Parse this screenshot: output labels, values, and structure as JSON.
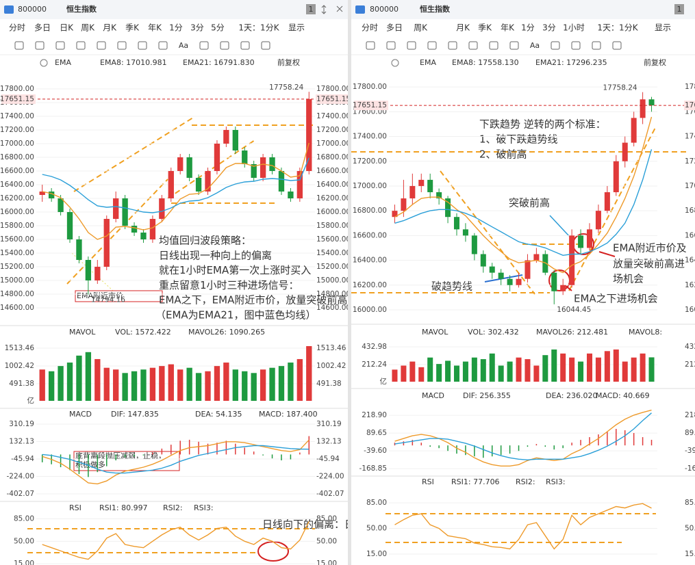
{
  "colors": {
    "up": "#e03a3a",
    "down": "#1e9a40",
    "ema8": "#ee9a2a",
    "ema21": "#2a9fd8",
    "dif": "#ee9a2a",
    "dea": "#2a9fd8",
    "rsi": "#ee9a2a",
    "last": "#d42020",
    "active_tab": "#e03a3a"
  },
  "left": {
    "header": {
      "code": "800000",
      "name": "恒生指数",
      "pane": "1"
    },
    "tabs": [
      "分时",
      "多日",
      "日K",
      "周K",
      "月K",
      "季K",
      "年K",
      "1分",
      "3分",
      "5分"
    ],
    "active_tab": 2,
    "interval": "1天：1分K",
    "display": "显示",
    "toolbar_text": "Aa",
    "price": {
      "legend": {
        "title": "EMA",
        "ema8": "EMA8: 17010.981",
        "ema21": "EMA21: 16791.830",
        "adjust": "前复权"
      },
      "ylim": [
        14400,
        18100
      ],
      "yticks": [
        {
          "value": 17800,
          "label": "17800.00"
        },
        {
          "value": 17600,
          "label": "17600.00"
        },
        {
          "value": 17400,
          "label": "17400.00"
        },
        {
          "value": 17200,
          "label": "17200.00"
        },
        {
          "value": 17000,
          "label": "17000.00"
        },
        {
          "value": 16800,
          "label": "16800.00"
        },
        {
          "value": 16600,
          "label": "16600.00"
        },
        {
          "value": 16400,
          "label": "16400.00"
        },
        {
          "value": 16200,
          "label": "16200.00"
        },
        {
          "value": 16000,
          "label": "16000.00"
        },
        {
          "value": 15800,
          "label": "15800.00"
        },
        {
          "value": 15600,
          "label": "15600.00"
        },
        {
          "value": 15400,
          "label": "15400.00"
        },
        {
          "value": 15200,
          "label": "15200.00"
        },
        {
          "value": 15000,
          "label": "15000.00"
        },
        {
          "value": 14800,
          "label": "14800.00"
        },
        {
          "value": 14600,
          "label": "14600.00"
        }
      ],
      "open": [
        16250,
        16300,
        16200,
        16000,
        15600,
        15300,
        15000,
        15200,
        15900,
        16200,
        15800,
        15700,
        15600,
        15900,
        16200,
        16600,
        16800,
        16500,
        16300,
        16600,
        17000,
        17200,
        16900,
        16700,
        16500,
        16800,
        16600,
        16300,
        16200,
        16600
      ],
      "high": [
        16400,
        16350,
        16250,
        16050,
        15650,
        15350,
        15300,
        15950,
        16300,
        16250,
        15850,
        15750,
        15950,
        16250,
        16650,
        16850,
        16850,
        16550,
        16650,
        17050,
        17250,
        17250,
        16950,
        16750,
        16850,
        16850,
        16650,
        16350,
        16650,
        17758.24
      ],
      "low": [
        16150,
        16150,
        15950,
        15550,
        15250,
        14794.16,
        14950,
        15150,
        15850,
        15750,
        15650,
        15550,
        15550,
        15850,
        16150,
        16550,
        16450,
        16250,
        16250,
        16550,
        16950,
        16850,
        16650,
        16450,
        16450,
        16550,
        16250,
        16150,
        16150,
        16550
      ],
      "close": [
        16300,
        16200,
        16000,
        15600,
        15300,
        15000,
        15200,
        15900,
        16200,
        15800,
        15700,
        15600,
        15900,
        16200,
        16600,
        16800,
        16500,
        16300,
        16600,
        17000,
        17200,
        16900,
        16700,
        16500,
        16800,
        16600,
        16300,
        16200,
        16600,
        17651.15
      ],
      "ema8": [
        16300,
        16270,
        16210,
        16070,
        15900,
        15700,
        15600,
        15650,
        15780,
        15790,
        15770,
        15740,
        15770,
        15860,
        16020,
        16190,
        16260,
        16270,
        16340,
        16490,
        16650,
        16710,
        16710,
        16670,
        16700,
        16680,
        16600,
        16510,
        16530,
        17010.981
      ],
      "ema21": [
        16550,
        16520,
        16470,
        16390,
        16290,
        16180,
        16090,
        16070,
        16080,
        16060,
        16030,
        16000,
        15990,
        16010,
        16060,
        16130,
        16160,
        16170,
        16210,
        16280,
        16360,
        16410,
        16440,
        16450,
        16480,
        16490,
        16480,
        16460,
        16470,
        16791.83
      ]
    },
    "volume": {
      "legend": {
        "title": "MAVOL",
        "vol": "VOL: 1572.422",
        "mavol26": "MAVOL26: 1090.265"
      },
      "unit": "亿",
      "ylim": [
        0,
        1730
      ],
      "yticks": [
        491.38,
        1002.42,
        1513.46
      ],
      "values": [
        900,
        850,
        1000,
        1100,
        1300,
        1400,
        1200,
        950,
        900,
        800,
        850,
        900,
        950,
        1000,
        1050,
        900,
        950,
        800,
        850,
        1000,
        1100,
        900,
        850,
        800,
        900,
        950,
        1000,
        1100,
        1200,
        1572.422
      ]
    },
    "macd": {
      "legend": {
        "title": "MACD",
        "dif": "DIF: 147.835",
        "dea": "DEA: 54.135",
        "macd": "MACD: 187.400"
      },
      "ylim": [
        -458,
        366
      ],
      "yticks": [
        310.19,
        132.13,
        -45.94,
        {
          "value": -224,
          "label": "-224.00"
        },
        -402.07
      ],
      "hist": [
        -80,
        -100,
        -130,
        -160,
        -200,
        -230,
        -180,
        -120,
        -60,
        -30,
        -20,
        -10,
        20,
        60,
        100,
        140,
        150,
        130,
        110,
        120,
        140,
        110,
        70,
        30,
        -10,
        -40,
        -60,
        -50,
        20,
        187.4
      ],
      "dif": [
        -20,
        -50,
        -90,
        -150,
        -220,
        -290,
        -300,
        -270,
        -210,
        -170,
        -150,
        -130,
        -100,
        -60,
        -10,
        40,
        70,
        80,
        90,
        110,
        130,
        130,
        120,
        100,
        80,
        60,
        40,
        30,
        50,
        147.835
      ],
      "dea": [
        0,
        -10,
        -30,
        -50,
        -80,
        -110,
        -150,
        -180,
        -190,
        -190,
        -180,
        -170,
        -160,
        -140,
        -110,
        -70,
        -40,
        -10,
        10,
        30,
        50,
        70,
        80,
        90,
        90,
        80,
        70,
        60,
        55,
        54.135
      ]
    },
    "rsi": {
      "legend": {
        "title": "RSI",
        "rsi1": "RSI1: 80.997",
        "rsi2": "RSI2:",
        "rsi3": "RSI3:"
      },
      "ylim": [
        13,
        92
      ],
      "yticks": [
        {
          "value": 85,
          "label": "85.00"
        },
        {
          "value": 50,
          "label": "50.00"
        },
        {
          "value": 15,
          "label": "15.00"
        }
      ],
      "values": [
        45,
        40,
        35,
        30,
        25,
        22,
        35,
        55,
        62,
        45,
        42,
        40,
        50,
        60,
        68,
        72,
        60,
        52,
        60,
        70,
        72,
        58,
        50,
        45,
        55,
        50,
        40,
        38,
        52,
        80.997
      ]
    },
    "annotations": {
      "strategy": [
        "均值回归波段策略：",
        "日线出现一种向上的偏离",
        "就在1小时EMA第一次上涨时买入",
        "重点留意1小时三种进场信号：",
        "EMA之下，EMA附近市价，放量突破前高",
        "（EMA为EMA21，图中蓝色均线）"
      ],
      "box": "EMA附近市价",
      "macd_note": [
        "底背离段抛压减弱，止稳，",
        "积极做多"
      ],
      "rsi_note": "日线向下的偏离：日线RSI超卖"
    }
  },
  "right": {
    "header": {
      "code": "800000",
      "name": "恒生指数",
      "pane": "1"
    },
    "tabs": [
      "分时",
      "多日",
      "周K",
      "月K",
      "季K",
      "年K",
      "1分",
      "3分",
      "1小时"
    ],
    "active_tab": 8,
    "interval": "1天：1分K",
    "display": "显示",
    "toolbar_text": "Aa",
    "price": {
      "legend": {
        "title": "EMA",
        "ema8": "EMA8: 17558.130",
        "ema21": "EMA21: 17296.235",
        "adjust": "前复权"
      },
      "ylim": [
        15950,
        17950
      ],
      "yticks": [
        {
          "value": 17800,
          "label": "17800.00"
        },
        {
          "value": 17600,
          "label": "17600.00"
        },
        {
          "value": 17400,
          "label": "17400.00"
        },
        {
          "value": 17200,
          "label": "17200.00"
        },
        {
          "value": 17000,
          "label": "17000.00"
        },
        {
          "value": 16800,
          "label": "16800.00"
        },
        {
          "value": 16600,
          "label": "16600.00"
        },
        {
          "value": 16400,
          "label": "16400.00"
        },
        {
          "value": 16200,
          "label": "16200.00"
        },
        {
          "value": 16000,
          "label": "16000.00"
        }
      ],
      "open": [
        16750,
        16800,
        16900,
        17000,
        17050,
        16950,
        16900,
        16750,
        16650,
        16600,
        16450,
        16350,
        16300,
        16250,
        16200,
        16250,
        16400,
        16450,
        16300,
        16150,
        16200,
        16600,
        16500,
        16650,
        16800,
        16950,
        17200,
        17350,
        17550,
        17700
      ],
      "high": [
        16850,
        17050,
        17100,
        17100,
        17100,
        16980,
        16920,
        16780,
        16700,
        16620,
        16480,
        16380,
        16330,
        16280,
        16300,
        16450,
        16500,
        16480,
        16320,
        16250,
        16650,
        16650,
        16700,
        16850,
        17000,
        17250,
        17400,
        17600,
        17758.24,
        17720
      ],
      "low": [
        16700,
        16750,
        16850,
        16950,
        16900,
        16850,
        16700,
        16600,
        16550,
        16400,
        16300,
        16250,
        16200,
        16150,
        16180,
        16220,
        16380,
        16280,
        16044.45,
        16120,
        16180,
        16450,
        16480,
        16620,
        16780,
        16920,
        17150,
        17320,
        17500,
        17600
      ],
      "close": [
        16800,
        16900,
        17000,
        17050,
        16950,
        16900,
        16750,
        16650,
        16600,
        16450,
        16350,
        16300,
        16250,
        16200,
        16250,
        16400,
        16450,
        16300,
        16150,
        16200,
        16600,
        16500,
        16650,
        16800,
        16950,
        17200,
        17350,
        17550,
        17700,
        17651.15
      ],
      "ema8": [
        16750,
        16790,
        16850,
        16900,
        16910,
        16910,
        16870,
        16810,
        16760,
        16680,
        16600,
        16530,
        16470,
        16410,
        16380,
        16390,
        16400,
        16380,
        16330,
        16300,
        16360,
        16390,
        16450,
        16530,
        16620,
        16750,
        16900,
        17080,
        17300,
        17558.13
      ],
      "ema21": [
        16700,
        16720,
        16750,
        16780,
        16800,
        16810,
        16810,
        16800,
        16780,
        16750,
        16710,
        16670,
        16630,
        16590,
        16550,
        16530,
        16520,
        16500,
        16470,
        16440,
        16450,
        16450,
        16470,
        16500,
        16540,
        16610,
        16700,
        16850,
        17050,
        17296.235
      ]
    },
    "volume": {
      "legend": {
        "title": "MAVOL",
        "vol": "VOL: 302.432",
        "mavol26": "MAVOL26: 212.481",
        "mavol8": "MAVOL8:"
      },
      "unit": "亿",
      "ylim": [
        0,
        510
      ],
      "yticks": [
        212.24,
        432.98
      ],
      "values": [
        150,
        200,
        250,
        180,
        300,
        220,
        260,
        200,
        250,
        300,
        280,
        350,
        200,
        250,
        300,
        280,
        200,
        330,
        400,
        350,
        300,
        250,
        350,
        300,
        380,
        400,
        250,
        300,
        350,
        302.432
      ]
    },
    "macd": {
      "legend": {
        "title": "MACD",
        "dif": "DIF: 256.355",
        "dea": "DEA: 236.020",
        "macd": "MACD: 40.669"
      },
      "ylim": [
        -218,
        294
      ],
      "yticks": [
        {
          "value": 218.9,
          "label": "218.90"
        },
        89.65,
        {
          "value": -39.6,
          "label": "-39.60"
        },
        -168.85
      ],
      "hist": [
        20,
        30,
        40,
        20,
        -10,
        -20,
        -40,
        -60,
        -70,
        -80,
        -90,
        -80,
        -70,
        -60,
        -40,
        -10,
        10,
        -10,
        -30,
        -20,
        20,
        40,
        60,
        80,
        100,
        120,
        110,
        90,
        60,
        40.669
      ],
      "dif": [
        30,
        50,
        70,
        80,
        70,
        50,
        20,
        -20,
        -50,
        -90,
        -120,
        -140,
        -150,
        -150,
        -140,
        -110,
        -90,
        -100,
        -110,
        -100,
        -60,
        -30,
        10,
        50,
        100,
        150,
        190,
        220,
        240,
        256.355
      ],
      "dea": [
        10,
        20,
        30,
        40,
        50,
        50,
        45,
        30,
        15,
        -5,
        -30,
        -55,
        -75,
        -90,
        -100,
        -105,
        -100,
        -100,
        -100,
        -100,
        -90,
        -80,
        -60,
        -35,
        -5,
        30,
        70,
        120,
        180,
        236.02
      ]
    },
    "rsi": {
      "legend": {
        "title": "RSI",
        "rsi1": "RSI1: 77.706",
        "rsi2": "RSI2:",
        "rsi3": "RSI3:"
      },
      "ylim": [
        0,
        101
      ],
      "yticks": [
        {
          "value": 85,
          "label": "85.00"
        },
        {
          "value": 50,
          "label": "50.00"
        },
        {
          "value": 15,
          "label": "15.00"
        }
      ],
      "values": [
        55,
        62,
        68,
        70,
        55,
        50,
        40,
        38,
        36,
        30,
        28,
        25,
        24,
        22,
        35,
        55,
        58,
        40,
        22,
        35,
        68,
        55,
        65,
        70,
        75,
        80,
        78,
        82,
        84,
        77.706
      ]
    },
    "annotations": {
      "criteria": [
        "下跌趋势 逆转的两个标准：",
        "1、破下跌趋势线",
        "2、破前高"
      ],
      "break_high": "突破前高",
      "break_trend": "破趋势线",
      "entry_near": [
        "EMA附近市价及",
        "放量突破前高进",
        "场机会"
      ],
      "entry_below": "EMA之下进场机会"
    }
  }
}
